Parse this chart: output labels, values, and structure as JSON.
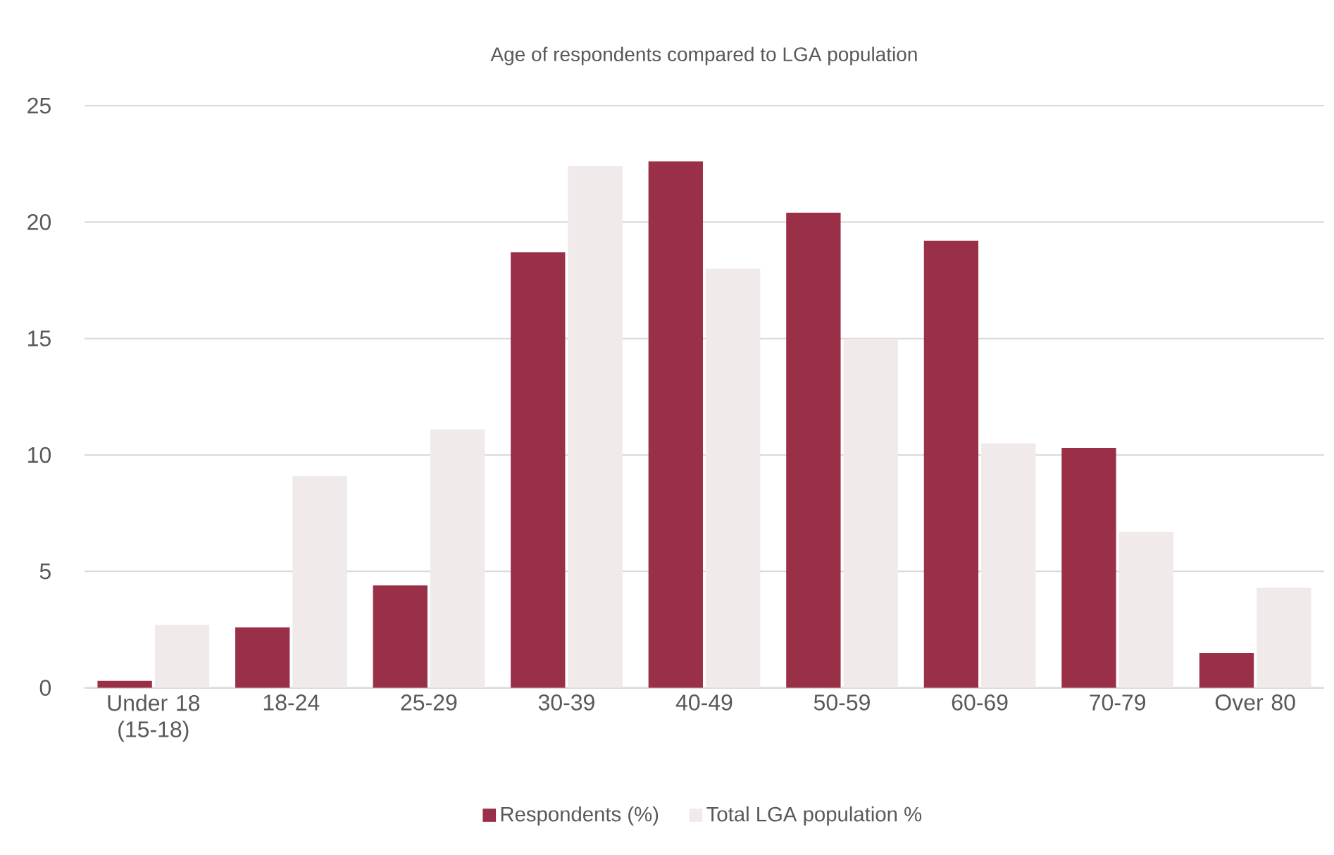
{
  "chart_data": {
    "type": "bar",
    "title": "Age of respondents compared to LGA population",
    "categories": [
      "Under 18 (15-18)",
      "18-24",
      "25-29",
      "30-39",
      "40-49",
      "50-59",
      "60-69",
      "70-79",
      "Over 80"
    ],
    "series": [
      {
        "name": "Respondents (%)",
        "color": "#9a3047",
        "values": [
          0.3,
          2.6,
          4.4,
          18.7,
          22.6,
          20.4,
          19.2,
          10.3,
          1.5
        ]
      },
      {
        "name": "Total LGA population %",
        "color": "#f0eaea",
        "values": [
          2.7,
          9.1,
          11.1,
          22.4,
          18.0,
          15.0,
          10.5,
          6.7,
          4.3
        ]
      }
    ],
    "ylim": [
      0,
      25
    ],
    "yticks": [
      0,
      5,
      10,
      15,
      20,
      25
    ],
    "grid": "y",
    "legend": "bottom"
  }
}
